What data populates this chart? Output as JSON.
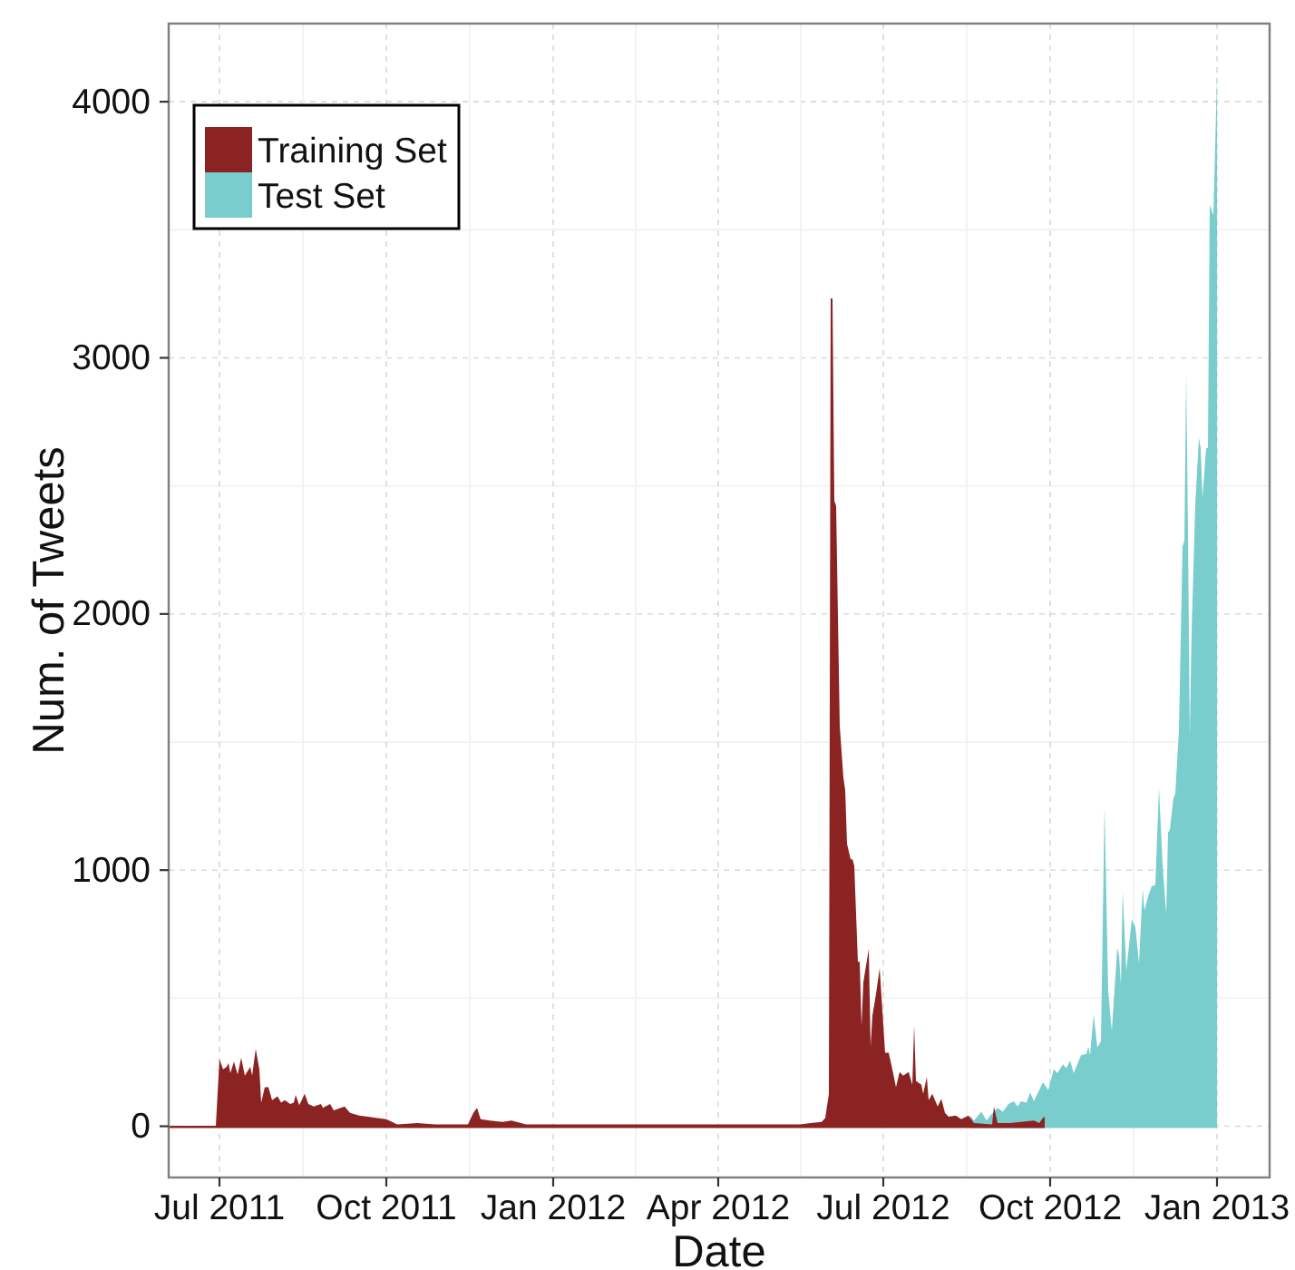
{
  "chart_data": {
    "type": "area",
    "xlabel": "Date",
    "ylabel": "Num. of Tweets",
    "xlim": [
      "2011-06-03",
      "2013-01-30"
    ],
    "ylim": [
      -200,
      4305
    ],
    "xticks": [
      {
        "value": "2011-07-01",
        "label": "Jul 2011"
      },
      {
        "value": "2011-10-01",
        "label": "Oct 2011"
      },
      {
        "value": "2012-01-01",
        "label": "Jan 2012"
      },
      {
        "value": "2012-04-01",
        "label": "Apr 2012"
      },
      {
        "value": "2012-07-01",
        "label": "Jul 2012"
      },
      {
        "value": "2012-10-01",
        "label": "Oct 2012"
      },
      {
        "value": "2013-01-01",
        "label": "Jan 2013"
      }
    ],
    "yticks": [
      0,
      1000,
      2000,
      3000,
      4000
    ],
    "grid": true,
    "legend": "top left",
    "series": [
      {
        "name": "Training Set",
        "color": "#8b2323",
        "x": [
          "2011-06-03",
          "2011-06-29",
          "2011-07-01",
          "2011-07-03",
          "2011-07-05",
          "2011-07-06",
          "2011-07-07",
          "2011-07-09",
          "2011-07-11",
          "2011-07-13",
          "2011-07-15",
          "2011-07-18",
          "2011-07-19",
          "2011-07-21",
          "2011-07-23",
          "2011-07-24",
          "2011-07-26",
          "2011-07-28",
          "2011-07-30",
          "2011-08-02",
          "2011-08-04",
          "2011-08-06",
          "2011-08-09",
          "2011-08-11",
          "2011-08-12",
          "2011-08-14",
          "2011-08-17",
          "2011-08-19",
          "2011-08-22",
          "2011-08-26",
          "2011-08-27",
          "2011-08-31",
          "2011-09-02",
          "2011-09-08",
          "2011-09-11",
          "2011-09-16",
          "2011-09-21",
          "2011-09-26",
          "2011-10-01",
          "2011-10-07",
          "2011-10-18",
          "2011-10-28",
          "2011-11-15",
          "2011-11-18",
          "2011-11-20",
          "2011-11-22",
          "2011-11-27",
          "2011-12-04",
          "2011-12-09",
          "2011-12-17",
          "2012-01-17",
          "2012-03-17",
          "2012-04-26",
          "2012-05-16",
          "2012-05-22",
          "2012-05-28",
          "2012-05-30",
          "2012-06-01",
          "2012-06-02",
          "2012-06-03",
          "2012-06-04",
          "2012-06-05",
          "2012-06-07",
          "2012-06-09",
          "2012-06-10",
          "2012-06-11",
          "2012-06-13",
          "2012-06-14",
          "2012-06-15",
          "2012-06-17",
          "2012-06-18",
          "2012-06-19",
          "2012-06-20",
          "2012-06-23",
          "2012-06-24",
          "2012-06-25",
          "2012-06-27",
          "2012-06-29",
          "2012-07-02",
          "2012-07-04",
          "2012-07-06",
          "2012-07-08",
          "2012-07-10",
          "2012-07-12",
          "2012-07-15",
          "2012-07-17",
          "2012-07-18",
          "2012-07-19",
          "2012-07-22",
          "2012-07-23",
          "2012-07-25",
          "2012-07-26",
          "2012-07-28",
          "2012-07-31",
          "2012-08-02",
          "2012-08-04",
          "2012-08-06",
          "2012-08-10",
          "2012-08-13",
          "2012-08-17",
          "2012-08-20",
          "2012-08-30",
          "2012-08-31",
          "2012-09-02",
          "2012-09-09",
          "2012-09-15",
          "2012-09-22",
          "2012-09-25",
          "2012-09-27",
          "2012-09-28"
        ],
        "values": [
          0,
          0,
          260,
          220,
          230,
          245,
          205,
          250,
          200,
          265,
          195,
          230,
          195,
          300,
          220,
          90,
          150,
          150,
          100,
          115,
          90,
          100,
          85,
          90,
          120,
          80,
          125,
          85,
          75,
          85,
          70,
          85,
          60,
          75,
          50,
          40,
          35,
          30,
          25,
          5,
          10,
          5,
          5,
          50,
          70,
          25,
          20,
          15,
          20,
          5,
          5,
          5,
          5,
          5,
          10,
          15,
          30,
          125,
          3230,
          3230,
          2440,
          2420,
          1560,
          1360,
          1310,
          1100,
          1040,
          1040,
          1015,
          640,
          640,
          390,
          560,
          690,
          310,
          430,
          515,
          615,
          285,
          285,
          220,
          150,
          210,
          195,
          210,
          160,
          390,
          175,
          160,
          125,
          190,
          100,
          125,
          75,
          105,
          50,
          35,
          40,
          25,
          40,
          10,
          5,
          75,
          10,
          10,
          15,
          20,
          10,
          30,
          35
        ]
      },
      {
        "name": "Test Set",
        "color": "#79cdcd",
        "x": [
          "2012-08-18",
          "2012-08-20",
          "2012-08-24",
          "2012-08-27",
          "2012-08-29",
          "2012-09-02",
          "2012-09-05",
          "2012-09-08",
          "2012-09-11",
          "2012-09-13",
          "2012-09-15",
          "2012-09-18",
          "2012-09-20",
          "2012-09-22",
          "2012-09-25",
          "2012-09-27",
          "2012-09-30",
          "2012-10-03",
          "2012-10-05",
          "2012-10-08",
          "2012-10-10",
          "2012-10-12",
          "2012-10-14",
          "2012-10-18",
          "2012-10-21",
          "2012-10-22",
          "2012-10-23",
          "2012-10-25",
          "2012-10-27",
          "2012-10-29",
          "2012-10-31",
          "2012-11-02",
          "2012-11-04",
          "2012-11-07",
          "2012-11-08",
          "2012-11-09",
          "2012-11-10",
          "2012-11-12",
          "2012-11-15",
          "2012-11-17",
          "2012-11-19",
          "2012-11-21",
          "2012-11-22",
          "2012-11-24",
          "2012-11-26",
          "2012-11-28",
          "2012-11-30",
          "2012-12-02",
          "2012-12-04",
          "2012-12-05",
          "2012-12-06",
          "2012-12-08",
          "2012-12-09",
          "2012-12-11",
          "2012-12-13",
          "2012-12-14",
          "2012-12-15",
          "2012-12-16",
          "2012-12-17",
          "2012-12-18",
          "2012-12-20",
          "2012-12-22",
          "2012-12-23",
          "2012-12-24",
          "2012-12-26",
          "2012-12-27",
          "2012-12-28",
          "2012-12-30",
          "2013-01-01"
        ],
        "values": [
          40,
          20,
          55,
          20,
          40,
          70,
          55,
          85,
          95,
          75,
          95,
          90,
          130,
          95,
          140,
          170,
          140,
          220,
          205,
          240,
          225,
          255,
          205,
          275,
          280,
          310,
          275,
          435,
          305,
          330,
          1250,
          525,
          370,
          695,
          665,
          550,
          915,
          605,
          805,
          775,
          635,
          925,
          840,
          895,
          935,
          940,
          1320,
          1020,
          825,
          1145,
          1155,
          1280,
          1295,
          1545,
          2260,
          2285,
          2935,
          2315,
          1515,
          1930,
          2425,
          2685,
          2645,
          2450,
          2645,
          2645,
          3595,
          3555,
          4100
        ]
      }
    ]
  }
}
